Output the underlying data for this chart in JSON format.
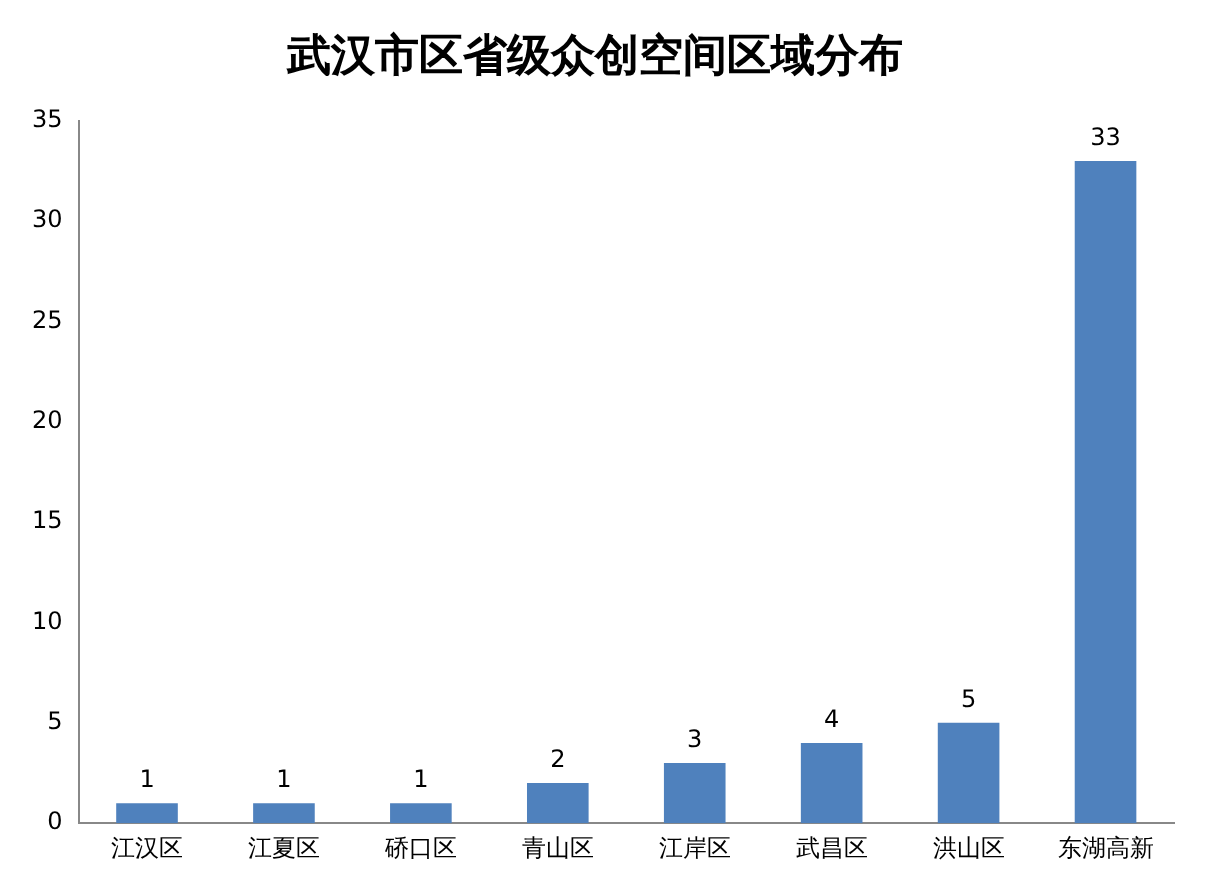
{
  "chart_data": {
    "type": "bar",
    "title": "武汉市区省级众创空间区域分布",
    "categories": [
      "江汉区",
      "江夏区",
      "硚口区",
      "青山区",
      "江岸区",
      "武昌区",
      "洪山区",
      "东湖高新"
    ],
    "values": [
      1,
      1,
      1,
      2,
      3,
      4,
      5,
      33
    ],
    "color": "#4f81bd",
    "ylim": [
      0,
      35
    ],
    "yticks": [
      0,
      5,
      10,
      15,
      20,
      25,
      30,
      35
    ],
    "grid": false,
    "data_labels": true
  }
}
